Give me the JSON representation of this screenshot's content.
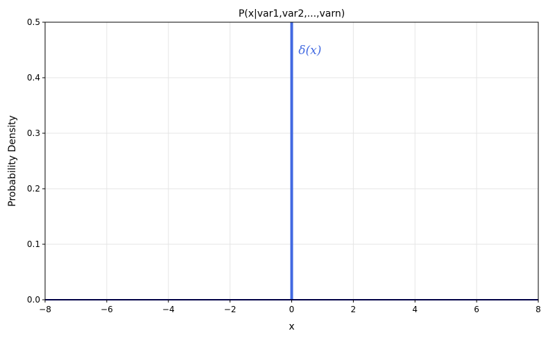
{
  "chart_data": {
    "type": "line",
    "title": "P(x|var1,var2,...,varn)",
    "xlabel": "x",
    "ylabel": "Probability Density",
    "xlim": [
      -8,
      8
    ],
    "ylim": [
      0,
      0.5
    ],
    "xticks": [
      -8,
      -6,
      -4,
      -2,
      0,
      2,
      4,
      6,
      8
    ],
    "xtick_labels": [
      "−8",
      "−6",
      "−4",
      "−2",
      "0",
      "2",
      "4",
      "6",
      "8"
    ],
    "yticks": [
      0.0,
      0.1,
      0.2,
      0.3,
      0.4,
      0.5
    ],
    "ytick_labels": [
      "0.0",
      "0.1",
      "0.2",
      "0.3",
      "0.4",
      "0.5"
    ],
    "grid": true,
    "series": [
      {
        "kind": "spike",
        "x": [
          0,
          0
        ],
        "y": [
          0,
          0.5
        ],
        "color": "#4169e1"
      },
      {
        "kind": "baseline",
        "x": [
          -8,
          8
        ],
        "y": [
          0,
          0
        ],
        "color": "#00008b"
      }
    ],
    "annotations": [
      {
        "text": "δ(x)",
        "x": 0.22,
        "y": 0.45,
        "color": "#4169e1"
      }
    ]
  }
}
